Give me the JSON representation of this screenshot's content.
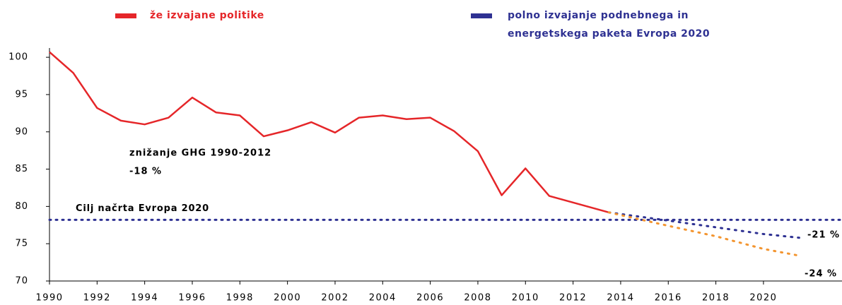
{
  "chart_data": {
    "type": "line",
    "series": [
      {
        "name": "že izvajane politike",
        "color": "#e52629",
        "style": "solid",
        "x": [
          1990,
          1991,
          1992,
          1993,
          1994,
          1995,
          1996,
          1997,
          1998,
          1999,
          2000,
          2001,
          2002,
          2003,
          2004,
          2005,
          2006,
          2007,
          2008,
          2009,
          2010,
          2011,
          2013.5
        ],
        "values": [
          100.7,
          97.9,
          93.2,
          91.5,
          91.0,
          91.9,
          94.6,
          92.6,
          92.2,
          89.4,
          90.2,
          91.3,
          89.9,
          91.9,
          92.2,
          91.7,
          91.9,
          90.1,
          87.4,
          81.5,
          85.1,
          81.4,
          79.2
        ]
      },
      {
        "name": "polno izvajanje podnebnega in energetskega paketa Evropa 2020",
        "color": "#2e3192",
        "style": "dotted",
        "x": [
          2013.5,
          2016,
          2018,
          2020,
          2021.5
        ],
        "values": [
          79.2,
          78.1,
          77.2,
          76.3,
          75.8
        ]
      },
      {
        "color": "#f39530",
        "style": "dotted",
        "x": [
          2013.5,
          2016,
          2018,
          2020,
          2021.5
        ],
        "values": [
          79.2,
          77.4,
          76.0,
          74.3,
          73.4
        ]
      }
    ],
    "reference_line": {
      "value": 78.2,
      "label": "Cilj načrta Evropa 2020",
      "color": "#2e3192"
    },
    "annotations": [
      {
        "text": "znižanje GHG 1990-2012",
        "color": "#e52629"
      },
      {
        "text": "-18 %",
        "color": "#e52629"
      },
      {
        "text": "-21 %",
        "color": "#2e3192"
      },
      {
        "text": "-24 %",
        "color": "#f39530"
      }
    ],
    "xlim": [
      1990,
      2023.3
    ],
    "xticks": [
      1990,
      1992,
      1994,
      1996,
      1998,
      2000,
      2002,
      2004,
      2006,
      2008,
      2010,
      2012,
      2014,
      2016,
      2018,
      2020
    ],
    "ylim": [
      70,
      102
    ],
    "yticks": [
      70,
      75,
      80,
      85,
      90,
      95,
      100
    ]
  }
}
